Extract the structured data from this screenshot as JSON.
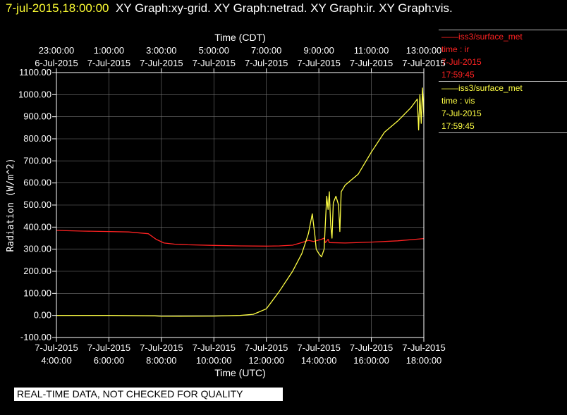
{
  "header": {
    "timestamp": "7-jul-2015,18:00:00",
    "titles": "XY Graph:xy-grid.  XY Graph:netrad.  XY Graph:ir.  XY Graph:vis."
  },
  "footer": {
    "notice": "REAL-TIME DATA, NOT CHECKED FOR QUALITY"
  },
  "legend": [
    {
      "name": "iss3/surface_met",
      "var": "time : ir",
      "date": "7-Jul-2015",
      "time": "17:59:45",
      "color": "#ff2222"
    },
    {
      "name": "iss3/surface_met",
      "var": "time : vis",
      "date": "7-Jul-2015",
      "time": "17:59:45",
      "color": "#ffff44"
    }
  ],
  "chart_data": {
    "type": "line",
    "title": "",
    "xlabel": "Time (UTC)",
    "x2label": "Time (CDT)",
    "ylabel": "Radiation (W/m^2)",
    "xlim": [
      "2015-07-07T04:00",
      "2015-07-07T18:00"
    ],
    "ylim": [
      -100,
      1100
    ],
    "grid": true,
    "y_ticks": [
      "-100.00",
      "0.00",
      "100.00",
      "200.00",
      "300.00",
      "400.00",
      "500.00",
      "600.00",
      "700.00",
      "800.00",
      "900.00",
      "1000.00",
      "1100.00"
    ],
    "x_ticks_bottom": [
      {
        "date": "7-Jul-2015",
        "time": "4:00:00"
      },
      {
        "date": "7-Jul-2015",
        "time": "6:00:00"
      },
      {
        "date": "7-Jul-2015",
        "time": "8:00:00"
      },
      {
        "date": "7-Jul-2015",
        "time": "10:00:00"
      },
      {
        "date": "7-Jul-2015",
        "time": "12:00:00"
      },
      {
        "date": "7-Jul-2015",
        "time": "14:00:00"
      },
      {
        "date": "7-Jul-2015",
        "time": "16:00:00"
      },
      {
        "date": "7-Jul-2015",
        "time": "18:00:00"
      }
    ],
    "x_ticks_top": [
      {
        "time": "23:00:00",
        "date": "6-Jul-2015"
      },
      {
        "time": "1:00:00",
        "date": "7-Jul-2015"
      },
      {
        "time": "3:00:00",
        "date": "7-Jul-2015"
      },
      {
        "time": "5:00:00",
        "date": "7-Jul-2015"
      },
      {
        "time": "7:00:00",
        "date": "7-Jul-2015"
      },
      {
        "time": "9:00:00",
        "date": "7-Jul-2015"
      },
      {
        "time": "11:00:00",
        "date": "7-Jul-2015"
      },
      {
        "time": "13:00:00",
        "date": "7-Jul-2015"
      }
    ],
    "series": [
      {
        "name": "ir",
        "color": "#ff2222",
        "points": [
          [
            "2015-07-07T04:00",
            385
          ],
          [
            "2015-07-07T05:00",
            382
          ],
          [
            "2015-07-07T06:00",
            380
          ],
          [
            "2015-07-07T06:45",
            378
          ],
          [
            "2015-07-07T07:30",
            370
          ],
          [
            "2015-07-07T07:48",
            345
          ],
          [
            "2015-07-07T08:06",
            328
          ],
          [
            "2015-07-07T08:30",
            323
          ],
          [
            "2015-07-07T09:00",
            320
          ],
          [
            "2015-07-07T10:00",
            317
          ],
          [
            "2015-07-07T11:00",
            315
          ],
          [
            "2015-07-07T12:00",
            314
          ],
          [
            "2015-07-07T12:30",
            315
          ],
          [
            "2015-07-07T13:00",
            318
          ],
          [
            "2015-07-07T13:21",
            330
          ],
          [
            "2015-07-07T13:36",
            340
          ],
          [
            "2015-07-07T13:48",
            335
          ],
          [
            "2015-07-07T14:06",
            345
          ],
          [
            "2015-07-07T14:12",
            350
          ],
          [
            "2015-07-07T14:15",
            330
          ],
          [
            "2015-07-07T14:21",
            345
          ],
          [
            "2015-07-07T14:24",
            330
          ],
          [
            "2015-07-07T15:00",
            328
          ],
          [
            "2015-07-07T16:00",
            332
          ],
          [
            "2015-07-07T17:00",
            338
          ],
          [
            "2015-07-07T18:00",
            348
          ]
        ]
      },
      {
        "name": "vis",
        "color": "#ffff44",
        "points": [
          [
            "2015-07-07T04:00",
            0
          ],
          [
            "2015-07-07T06:00",
            0
          ],
          [
            "2015-07-07T07:45",
            -2
          ],
          [
            "2015-07-07T08:00",
            -4
          ],
          [
            "2015-07-07T10:00",
            -3
          ],
          [
            "2015-07-07T11:00",
            0
          ],
          [
            "2015-07-07T11:30",
            5
          ],
          [
            "2015-07-07T11:42",
            15
          ],
          [
            "2015-07-07T12:00",
            30
          ],
          [
            "2015-07-07T12:30",
            110
          ],
          [
            "2015-07-07T13:00",
            200
          ],
          [
            "2015-07-07T13:21",
            280
          ],
          [
            "2015-07-07T13:36",
            370
          ],
          [
            "2015-07-07T13:45",
            460
          ],
          [
            "2015-07-07T13:51",
            360
          ],
          [
            "2015-07-07T13:54",
            300
          ],
          [
            "2015-07-07T14:00",
            280
          ],
          [
            "2015-07-07T14:06",
            265
          ],
          [
            "2015-07-07T14:12",
            300
          ],
          [
            "2015-07-07T14:15",
            420
          ],
          [
            "2015-07-07T14:18",
            540
          ],
          [
            "2015-07-07T14:21",
            480
          ],
          [
            "2015-07-07T14:24",
            560
          ],
          [
            "2015-07-07T14:27",
            410
          ],
          [
            "2015-07-07T14:30",
            350
          ],
          [
            "2015-07-07T14:33",
            510
          ],
          [
            "2015-07-07T14:39",
            540
          ],
          [
            "2015-07-07T14:45",
            500
          ],
          [
            "2015-07-07T14:48",
            380
          ],
          [
            "2015-07-07T14:51",
            560
          ],
          [
            "2015-07-07T15:00",
            590
          ],
          [
            "2015-07-07T15:30",
            640
          ],
          [
            "2015-07-07T16:00",
            740
          ],
          [
            "2015-07-07T16:30",
            830
          ],
          [
            "2015-07-07T17:00",
            880
          ],
          [
            "2015-07-07T17:30",
            940
          ],
          [
            "2015-07-07T17:45",
            980
          ],
          [
            "2015-07-07T17:48",
            840
          ],
          [
            "2015-07-07T17:51",
            1000
          ],
          [
            "2015-07-07T17:54",
            870
          ],
          [
            "2015-07-07T17:57",
            1030
          ],
          [
            "2015-07-07T18:00",
            900
          ]
        ]
      }
    ]
  }
}
